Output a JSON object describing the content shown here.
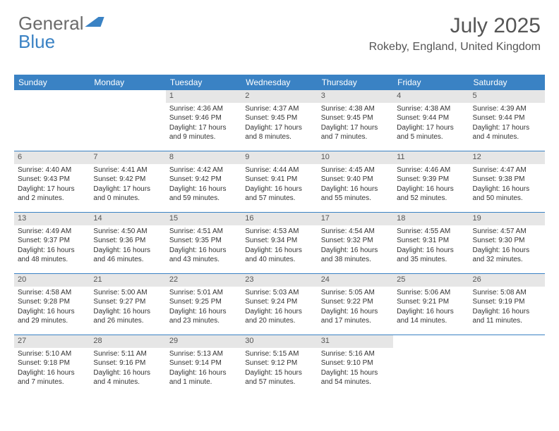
{
  "brand": {
    "part1": "General",
    "part2": "Blue"
  },
  "title": "July 2025",
  "location": "Rokeby, England, United Kingdom",
  "colors": {
    "header_bg": "#3a82c4",
    "header_text": "#ffffff",
    "daynum_bg": "#e6e6e6",
    "text": "#333333",
    "rule": "#3a82c4",
    "background": "#ffffff"
  },
  "dow": [
    "Sunday",
    "Monday",
    "Tuesday",
    "Wednesday",
    "Thursday",
    "Friday",
    "Saturday"
  ],
  "weeks": [
    [
      {
        "empty": true
      },
      {
        "empty": true
      },
      {
        "n": "1",
        "sunrise": "Sunrise: 4:36 AM",
        "sunset": "Sunset: 9:46 PM",
        "day1": "Daylight: 17 hours",
        "day2": "and 9 minutes."
      },
      {
        "n": "2",
        "sunrise": "Sunrise: 4:37 AM",
        "sunset": "Sunset: 9:45 PM",
        "day1": "Daylight: 17 hours",
        "day2": "and 8 minutes."
      },
      {
        "n": "3",
        "sunrise": "Sunrise: 4:38 AM",
        "sunset": "Sunset: 9:45 PM",
        "day1": "Daylight: 17 hours",
        "day2": "and 7 minutes."
      },
      {
        "n": "4",
        "sunrise": "Sunrise: 4:38 AM",
        "sunset": "Sunset: 9:44 PM",
        "day1": "Daylight: 17 hours",
        "day2": "and 5 minutes."
      },
      {
        "n": "5",
        "sunrise": "Sunrise: 4:39 AM",
        "sunset": "Sunset: 9:44 PM",
        "day1": "Daylight: 17 hours",
        "day2": "and 4 minutes."
      }
    ],
    [
      {
        "n": "6",
        "sunrise": "Sunrise: 4:40 AM",
        "sunset": "Sunset: 9:43 PM",
        "day1": "Daylight: 17 hours",
        "day2": "and 2 minutes."
      },
      {
        "n": "7",
        "sunrise": "Sunrise: 4:41 AM",
        "sunset": "Sunset: 9:42 PM",
        "day1": "Daylight: 17 hours",
        "day2": "and 0 minutes."
      },
      {
        "n": "8",
        "sunrise": "Sunrise: 4:42 AM",
        "sunset": "Sunset: 9:42 PM",
        "day1": "Daylight: 16 hours",
        "day2": "and 59 minutes."
      },
      {
        "n": "9",
        "sunrise": "Sunrise: 4:44 AM",
        "sunset": "Sunset: 9:41 PM",
        "day1": "Daylight: 16 hours",
        "day2": "and 57 minutes."
      },
      {
        "n": "10",
        "sunrise": "Sunrise: 4:45 AM",
        "sunset": "Sunset: 9:40 PM",
        "day1": "Daylight: 16 hours",
        "day2": "and 55 minutes."
      },
      {
        "n": "11",
        "sunrise": "Sunrise: 4:46 AM",
        "sunset": "Sunset: 9:39 PM",
        "day1": "Daylight: 16 hours",
        "day2": "and 52 minutes."
      },
      {
        "n": "12",
        "sunrise": "Sunrise: 4:47 AM",
        "sunset": "Sunset: 9:38 PM",
        "day1": "Daylight: 16 hours",
        "day2": "and 50 minutes."
      }
    ],
    [
      {
        "n": "13",
        "sunrise": "Sunrise: 4:49 AM",
        "sunset": "Sunset: 9:37 PM",
        "day1": "Daylight: 16 hours",
        "day2": "and 48 minutes."
      },
      {
        "n": "14",
        "sunrise": "Sunrise: 4:50 AM",
        "sunset": "Sunset: 9:36 PM",
        "day1": "Daylight: 16 hours",
        "day2": "and 46 minutes."
      },
      {
        "n": "15",
        "sunrise": "Sunrise: 4:51 AM",
        "sunset": "Sunset: 9:35 PM",
        "day1": "Daylight: 16 hours",
        "day2": "and 43 minutes."
      },
      {
        "n": "16",
        "sunrise": "Sunrise: 4:53 AM",
        "sunset": "Sunset: 9:34 PM",
        "day1": "Daylight: 16 hours",
        "day2": "and 40 minutes."
      },
      {
        "n": "17",
        "sunrise": "Sunrise: 4:54 AM",
        "sunset": "Sunset: 9:32 PM",
        "day1": "Daylight: 16 hours",
        "day2": "and 38 minutes."
      },
      {
        "n": "18",
        "sunrise": "Sunrise: 4:55 AM",
        "sunset": "Sunset: 9:31 PM",
        "day1": "Daylight: 16 hours",
        "day2": "and 35 minutes."
      },
      {
        "n": "19",
        "sunrise": "Sunrise: 4:57 AM",
        "sunset": "Sunset: 9:30 PM",
        "day1": "Daylight: 16 hours",
        "day2": "and 32 minutes."
      }
    ],
    [
      {
        "n": "20",
        "sunrise": "Sunrise: 4:58 AM",
        "sunset": "Sunset: 9:28 PM",
        "day1": "Daylight: 16 hours",
        "day2": "and 29 minutes."
      },
      {
        "n": "21",
        "sunrise": "Sunrise: 5:00 AM",
        "sunset": "Sunset: 9:27 PM",
        "day1": "Daylight: 16 hours",
        "day2": "and 26 minutes."
      },
      {
        "n": "22",
        "sunrise": "Sunrise: 5:01 AM",
        "sunset": "Sunset: 9:25 PM",
        "day1": "Daylight: 16 hours",
        "day2": "and 23 minutes."
      },
      {
        "n": "23",
        "sunrise": "Sunrise: 5:03 AM",
        "sunset": "Sunset: 9:24 PM",
        "day1": "Daylight: 16 hours",
        "day2": "and 20 minutes."
      },
      {
        "n": "24",
        "sunrise": "Sunrise: 5:05 AM",
        "sunset": "Sunset: 9:22 PM",
        "day1": "Daylight: 16 hours",
        "day2": "and 17 minutes."
      },
      {
        "n": "25",
        "sunrise": "Sunrise: 5:06 AM",
        "sunset": "Sunset: 9:21 PM",
        "day1": "Daylight: 16 hours",
        "day2": "and 14 minutes."
      },
      {
        "n": "26",
        "sunrise": "Sunrise: 5:08 AM",
        "sunset": "Sunset: 9:19 PM",
        "day1": "Daylight: 16 hours",
        "day2": "and 11 minutes."
      }
    ],
    [
      {
        "n": "27",
        "sunrise": "Sunrise: 5:10 AM",
        "sunset": "Sunset: 9:18 PM",
        "day1": "Daylight: 16 hours",
        "day2": "and 7 minutes."
      },
      {
        "n": "28",
        "sunrise": "Sunrise: 5:11 AM",
        "sunset": "Sunset: 9:16 PM",
        "day1": "Daylight: 16 hours",
        "day2": "and 4 minutes."
      },
      {
        "n": "29",
        "sunrise": "Sunrise: 5:13 AM",
        "sunset": "Sunset: 9:14 PM",
        "day1": "Daylight: 16 hours",
        "day2": "and 1 minute."
      },
      {
        "n": "30",
        "sunrise": "Sunrise: 5:15 AM",
        "sunset": "Sunset: 9:12 PM",
        "day1": "Daylight: 15 hours",
        "day2": "and 57 minutes."
      },
      {
        "n": "31",
        "sunrise": "Sunrise: 5:16 AM",
        "sunset": "Sunset: 9:10 PM",
        "day1": "Daylight: 15 hours",
        "day2": "and 54 minutes."
      },
      {
        "empty": true
      },
      {
        "empty": true
      }
    ]
  ]
}
